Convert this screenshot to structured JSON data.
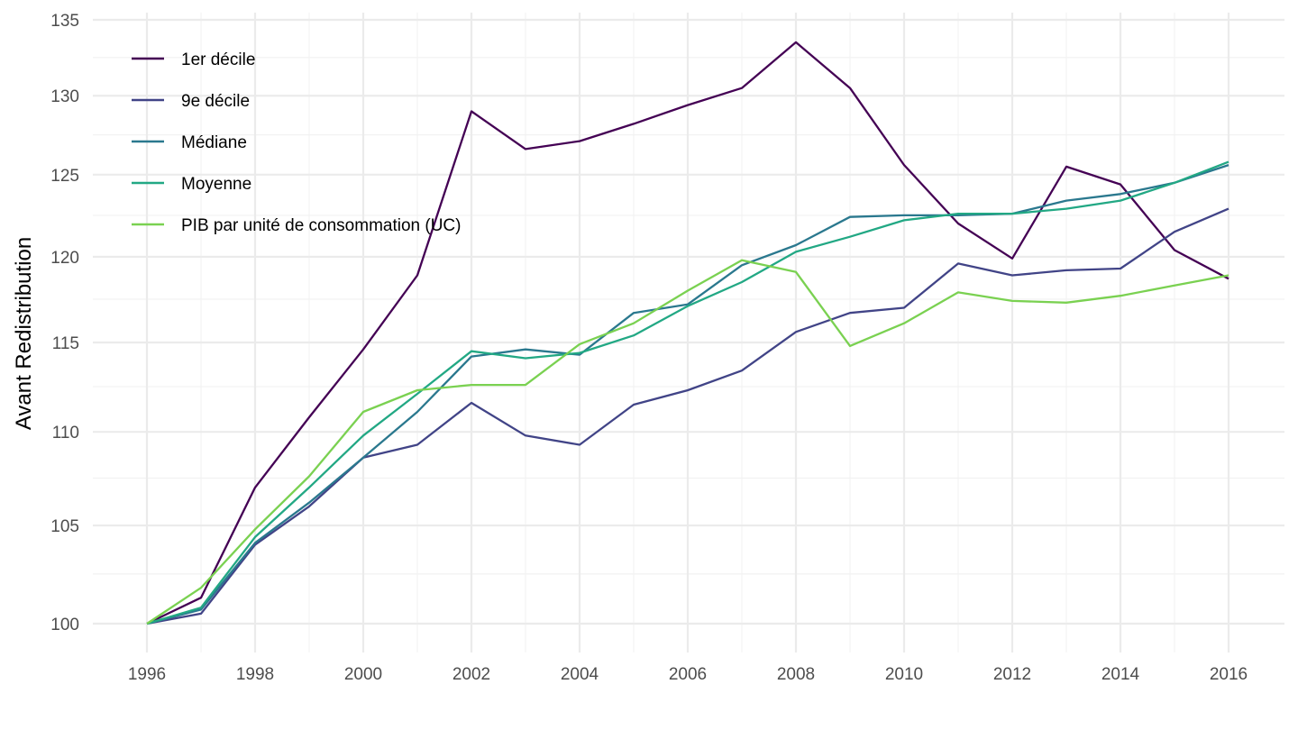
{
  "chart_data": {
    "type": "line",
    "title": "",
    "xlabel": "",
    "ylabel": "Avant Redistribution",
    "y_scale": "log",
    "grid": true,
    "legend_position": "top-left inside",
    "xlim": [
      1995,
      2017
    ],
    "ylim": [
      98.7,
      136.5
    ],
    "x_ticks": [
      1996,
      1998,
      2000,
      2002,
      2004,
      2006,
      2008,
      2010,
      2012,
      2014,
      2016
    ],
    "x_tick_labels": [
      "1996",
      "1998",
      "2000",
      "2002",
      "2004",
      "2006",
      "2008",
      "2010",
      "2012",
      "2014",
      "2016"
    ],
    "y_ticks": [
      100,
      105,
      110,
      115,
      120,
      125,
      130,
      135
    ],
    "y_tick_labels": [
      "100",
      "105",
      "110",
      "115",
      "120",
      "125",
      "130",
      "135"
    ],
    "x": [
      1996,
      1997,
      1998,
      1999,
      2000,
      2001,
      2002,
      2003,
      2004,
      2005,
      2006,
      2007,
      2008,
      2009,
      2010,
      2011,
      2012,
      2013,
      2014,
      2015,
      2016
    ],
    "series": [
      {
        "name": "1er décile",
        "color": "#440154",
        "values": [
          100,
          101.3,
          107.0,
          110.8,
          114.6,
          118.9,
          129.0,
          126.6,
          127.1,
          128.2,
          129.4,
          130.5,
          133.5,
          130.5,
          125.6,
          122.0,
          119.9,
          125.5,
          124.4,
          120.4,
          118.7
        ]
      },
      {
        "name": "9e décile",
        "color": "#414487",
        "values": [
          100,
          100.5,
          104.0,
          106.0,
          108.6,
          109.3,
          111.6,
          109.8,
          109.3,
          111.5,
          112.3,
          113.4,
          115.6,
          116.7,
          117.0,
          119.6,
          118.9,
          119.2,
          119.3,
          121.5,
          122.9
        ]
      },
      {
        "name": "Médiane",
        "color": "#2A788E",
        "values": [
          100,
          100.7,
          104.1,
          106.2,
          108.6,
          111.1,
          114.2,
          114.6,
          114.3,
          116.7,
          117.2,
          119.5,
          120.7,
          122.4,
          122.5,
          122.5,
          122.6,
          123.4,
          123.8,
          124.5,
          125.6
        ]
      },
      {
        "name": "Moyenne",
        "color": "#22A884",
        "values": [
          100,
          100.8,
          104.4,
          107.0,
          109.8,
          112.1,
          114.5,
          114.1,
          114.4,
          115.4,
          117.1,
          118.5,
          120.3,
          121.2,
          122.2,
          122.6,
          122.6,
          122.9,
          123.4,
          124.5,
          125.8
        ]
      },
      {
        "name": "PIB par unité de consommation (UC)",
        "color": "#7AD151",
        "values": [
          100,
          101.8,
          104.8,
          107.6,
          111.1,
          112.3,
          112.6,
          112.6,
          114.9,
          116.1,
          118.0,
          119.8,
          119.1,
          114.8,
          116.1,
          117.9,
          117.4,
          117.3,
          117.7,
          118.3,
          118.9
        ]
      }
    ]
  }
}
